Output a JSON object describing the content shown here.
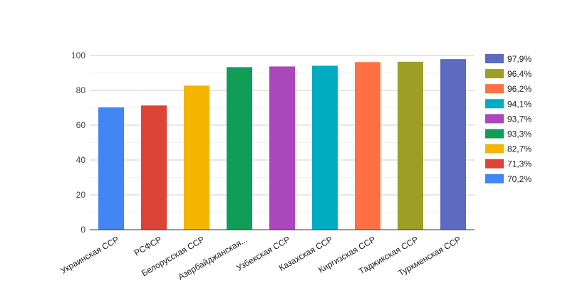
{
  "chart_data": {
    "type": "bar",
    "title": "",
    "xlabel": "",
    "ylabel": "",
    "ylim": [
      0,
      100
    ],
    "yticks": [
      0,
      20,
      40,
      60,
      80,
      100
    ],
    "grid": true,
    "legend_position": "right",
    "categories": [
      "Украинская ССР",
      "РСФСР",
      "Белорусская ССР",
      "Азербайджанская...",
      "Узбекская ССР",
      "Казахская ССР",
      "Киргизская ССР",
      "Таджикская ССР",
      "Туркменская ССР"
    ],
    "values": [
      70.2,
      71.3,
      82.7,
      93.3,
      93.7,
      94.1,
      96.2,
      96.4,
      97.9
    ],
    "colors": [
      "#4285f4",
      "#db4437",
      "#f4b400",
      "#0f9d58",
      "#ab47bc",
      "#00acc1",
      "#ff7043",
      "#9e9d24",
      "#5c6bc0"
    ],
    "legend": [
      {
        "label": "97,9%",
        "color": "#5c6bc0"
      },
      {
        "label": "96,4%",
        "color": "#9e9d24"
      },
      {
        "label": "96,2%",
        "color": "#ff7043"
      },
      {
        "label": "94,1%",
        "color": "#00acc1"
      },
      {
        "label": "93,7%",
        "color": "#ab47bc"
      },
      {
        "label": "93,3%",
        "color": "#0f9d58"
      },
      {
        "label": "82,7%",
        "color": "#f4b400"
      },
      {
        "label": "71,3%",
        "color": "#db4437"
      },
      {
        "label": "70,2%",
        "color": "#4285f4"
      }
    ]
  }
}
